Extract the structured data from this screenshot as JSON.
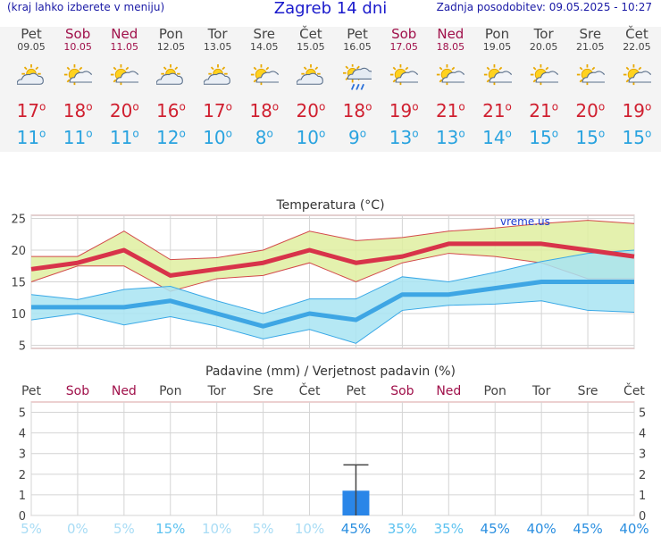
{
  "header": {
    "left_note": "(kraj lahko izberete v meniju)",
    "title": "Zagreb 14 dni",
    "updated": "Zadnja posodobitev: 09.05.2025 - 10:27"
  },
  "colors": {
    "max_temp": "#d02030",
    "min_temp": "#29a3df",
    "max_band": "#dfeea0",
    "min_band": "#a8e4f2",
    "precip_bar": "#2a86e8"
  },
  "days": [
    {
      "name": "Pet",
      "date": "09.05",
      "weekend": false,
      "icon": "partly-cloudy-icon",
      "tmax": "17",
      "tmin": "11"
    },
    {
      "name": "Sob",
      "date": "10.05",
      "weekend": true,
      "icon": "sun-cloud-icon",
      "tmax": "18",
      "tmin": "11"
    },
    {
      "name": "Ned",
      "date": "11.05",
      "weekend": true,
      "icon": "sun-cloud-icon",
      "tmax": "20",
      "tmin": "11"
    },
    {
      "name": "Pon",
      "date": "12.05",
      "weekend": false,
      "icon": "partly-cloudy-icon",
      "tmax": "16",
      "tmin": "12"
    },
    {
      "name": "Tor",
      "date": "13.05",
      "weekend": false,
      "icon": "partly-cloudy-icon",
      "tmax": "17",
      "tmin": "10"
    },
    {
      "name": "Sre",
      "date": "14.05",
      "weekend": false,
      "icon": "sun-cloud-icon",
      "tmax": "18",
      "tmin": "8"
    },
    {
      "name": "Čet",
      "date": "15.05",
      "weekend": false,
      "icon": "partly-cloudy-icon",
      "tmax": "20",
      "tmin": "10"
    },
    {
      "name": "Pet",
      "date": "16.05",
      "weekend": false,
      "icon": "sun-rain-icon",
      "tmax": "18",
      "tmin": "9"
    },
    {
      "name": "Sob",
      "date": "17.05",
      "weekend": true,
      "icon": "sun-cloud-icon",
      "tmax": "19",
      "tmin": "13"
    },
    {
      "name": "Ned",
      "date": "18.05",
      "weekend": true,
      "icon": "sun-cloud-icon",
      "tmax": "21",
      "tmin": "13"
    },
    {
      "name": "Pon",
      "date": "19.05",
      "weekend": false,
      "icon": "sun-cloud-icon",
      "tmax": "21",
      "tmin": "14"
    },
    {
      "name": "Tor",
      "date": "20.05",
      "weekend": false,
      "icon": "sun-cloud-icon",
      "tmax": "21",
      "tmin": "15"
    },
    {
      "name": "Sre",
      "date": "21.05",
      "weekend": false,
      "icon": "sun-cloud-icon",
      "tmax": "20",
      "tmin": "15"
    },
    {
      "name": "Čet",
      "date": "22.05",
      "weekend": false,
      "icon": "sun-cloud-icon",
      "tmax": "19",
      "tmin": "15"
    }
  ],
  "chart_data": [
    {
      "type": "line",
      "title": "Temperatura (°C)",
      "watermark": "vreme.us",
      "ylim": [
        4.5,
        25.5
      ],
      "yticks": [
        5,
        10,
        15,
        20,
        25
      ],
      "grid": true,
      "x": [
        "Pet",
        "Sob",
        "Ned",
        "Pon",
        "Tor",
        "Sre",
        "Čet",
        "Pet",
        "Sob",
        "Ned",
        "Pon",
        "Tor",
        "Sre",
        "Čet"
      ],
      "series": [
        {
          "role": "max",
          "values": [
            17,
            18,
            20,
            16,
            17,
            18,
            20,
            18,
            19,
            21,
            21,
            21,
            20,
            19
          ]
        },
        {
          "role": "max_upper",
          "values": [
            19,
            19,
            23,
            18.5,
            18.8,
            20,
            23,
            21.5,
            22,
            23,
            23.5,
            24.2,
            24.7,
            24.2
          ]
        },
        {
          "role": "max_lower",
          "values": [
            15,
            17.5,
            17.5,
            13.5,
            15.5,
            16,
            18,
            15,
            18,
            19.5,
            19,
            18,
            15.5,
            15.5
          ]
        },
        {
          "role": "min",
          "values": [
            11,
            11,
            11,
            12,
            10,
            8,
            10,
            9,
            13,
            13,
            14,
            15,
            15,
            15
          ]
        },
        {
          "role": "min_upper",
          "values": [
            13,
            12.2,
            13.8,
            14.3,
            12,
            10,
            12.3,
            12.3,
            15.8,
            15,
            16.5,
            18.2,
            19.5,
            20
          ]
        },
        {
          "role": "min_lower",
          "values": [
            9,
            10,
            8.2,
            9.5,
            8,
            6,
            7.5,
            5.3,
            10.5,
            11.3,
            11.5,
            12,
            10.5,
            10.2
          ]
        }
      ]
    },
    {
      "type": "bar",
      "title": "Padavine (mm) / Verjetnost padavin (%)",
      "ylim": [
        0,
        5.5
      ],
      "yticks": [
        0,
        1,
        2,
        3,
        4,
        5
      ],
      "x": [
        "Pet",
        "Sob",
        "Ned",
        "Pon",
        "Tor",
        "Sre",
        "Čet",
        "Pet",
        "Sob",
        "Ned",
        "Pon",
        "Tor",
        "Sre",
        "Čet"
      ],
      "weekend": [
        false,
        true,
        true,
        false,
        false,
        false,
        false,
        false,
        true,
        true,
        false,
        false,
        false,
        false
      ],
      "values": [
        0,
        0,
        0,
        0,
        0,
        0,
        0,
        1.2,
        0,
        0,
        0,
        0,
        0,
        0
      ],
      "error_high": [
        0,
        0,
        0,
        0,
        0,
        0,
        0,
        2.45,
        0,
        0,
        0,
        0,
        0,
        0
      ],
      "probability": [
        "5%",
        "0%",
        "5%",
        "15%",
        "10%",
        "5%",
        "10%",
        "45%",
        "35%",
        "35%",
        "45%",
        "40%",
        "45%",
        "40%"
      ],
      "probability_values": [
        5,
        0,
        5,
        15,
        10,
        5,
        10,
        45,
        35,
        35,
        45,
        40,
        45,
        40
      ]
    }
  ]
}
